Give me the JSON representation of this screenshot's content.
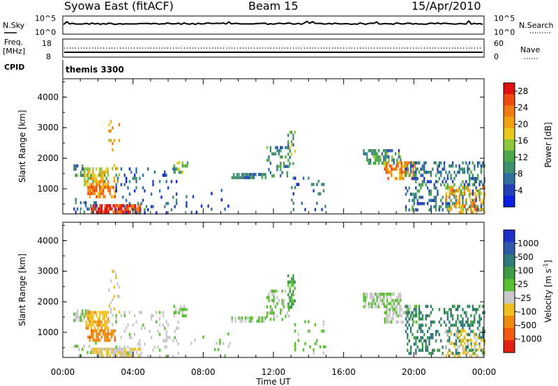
{
  "header": {
    "station": "Syowa East (fitACF)",
    "beam": "Beam 15",
    "date": "15/Apr/2010"
  },
  "status_panel": {
    "nsky_label": "N.Sky",
    "nsearch_label": "N.Search",
    "freq_label_line1": "Freq.",
    "freq_label_line2": "[MHz]",
    "nave_label": "Nave",
    "cpid_label": "CPID",
    "cpid_value": "themis 3300",
    "noise_ticks_left": [
      "10^5",
      "10^0"
    ],
    "noise_ticks_right": [
      "10^5",
      "10^0"
    ],
    "freq_ticks_left": [
      "18",
      "8"
    ],
    "nave_ticks_right": [
      "60",
      "0"
    ]
  },
  "colors": {
    "power_scale": [
      "#0b1fe0",
      "#2440b8",
      "#2f6ea0",
      "#3f8f70",
      "#4aa848",
      "#8cc83a",
      "#e8c81a",
      "#f0a010",
      "#f07a10",
      "#f04a10",
      "#e01010"
    ],
    "velocity_scale": [
      "#1f2fc8",
      "#2f5aa8",
      "#2f7a78",
      "#3f9a48",
      "#5ac030",
      "#c8c8c8",
      "#f0c020",
      "#f08a10",
      "#f05a10",
      "#e02010"
    ],
    "ground_scatter": "#c0c0c0"
  },
  "chart_data": [
    {
      "type": "heatmap",
      "name": "power-panel",
      "ylabel": "Slant Range [km]",
      "yticks": [
        "1000",
        "2000",
        "3000",
        "4000"
      ],
      "ylim": [
        180,
        4600
      ],
      "xlim": [
        0,
        24
      ],
      "colorbar": {
        "label": "Power [dB]",
        "ticks": [
          "4",
          "8",
          "12",
          "16",
          "20",
          "24",
          "28"
        ],
        "range": [
          0,
          30
        ]
      },
      "regions": [
        {
          "t0": 0.6,
          "t1": 1.4,
          "r0": 1400,
          "r1": 1800,
          "v": 9,
          "d": 0.6
        },
        {
          "t0": 1.2,
          "t1": 2.6,
          "r0": 1100,
          "r1": 1700,
          "v": 18,
          "d": 0.7
        },
        {
          "t0": 1.4,
          "t1": 3.0,
          "r0": 700,
          "r1": 1100,
          "v": 22,
          "d": 0.7
        },
        {
          "t0": 1.6,
          "t1": 4.4,
          "r0": 250,
          "r1": 500,
          "v": 27,
          "d": 0.8
        },
        {
          "t0": 0.6,
          "t1": 2.0,
          "r0": 200,
          "r1": 700,
          "v": 8,
          "d": 0.25
        },
        {
          "t0": 2.6,
          "t1": 3.2,
          "r0": 1300,
          "r1": 3250,
          "v": 20,
          "d": 0.15
        },
        {
          "t0": 3.0,
          "t1": 6.6,
          "r0": 200,
          "r1": 1700,
          "v": 6,
          "d": 0.12
        },
        {
          "t0": 6.3,
          "t1": 7.1,
          "r0": 1500,
          "r1": 1900,
          "v": 14,
          "d": 0.45
        },
        {
          "t0": 7.0,
          "t1": 9.5,
          "r0": 200,
          "r1": 1000,
          "v": 5,
          "d": 0.06
        },
        {
          "t0": 9.6,
          "t1": 11.6,
          "r0": 1380,
          "r1": 1520,
          "v": 8,
          "d": 0.7
        },
        {
          "t0": 11.6,
          "t1": 12.9,
          "r0": 1400,
          "r1": 2400,
          "v": 10,
          "d": 0.35
        },
        {
          "t0": 12.8,
          "t1": 13.2,
          "r0": 1800,
          "r1": 2900,
          "v": 12,
          "d": 0.4
        },
        {
          "t0": 13.0,
          "t1": 15.0,
          "r0": 300,
          "r1": 1400,
          "v": 6,
          "d": 0.12
        },
        {
          "t0": 17.1,
          "t1": 19.2,
          "r0": 1850,
          "r1": 2300,
          "v": 10,
          "d": 0.65
        },
        {
          "t0": 18.3,
          "t1": 20.2,
          "r0": 1300,
          "r1": 1900,
          "v": 22,
          "d": 0.55
        },
        {
          "t0": 19.5,
          "t1": 24.0,
          "r0": 300,
          "r1": 1900,
          "v": 8,
          "d": 0.35
        },
        {
          "t0": 21.8,
          "t1": 24.0,
          "r0": 250,
          "r1": 1100,
          "v": 20,
          "d": 0.35
        }
      ]
    },
    {
      "type": "heatmap",
      "name": "velocity-panel",
      "ylabel": "Slant Range [km]",
      "yticks": [
        "1000",
        "2000",
        "3000",
        "4000"
      ],
      "ylim": [
        180,
        4600
      ],
      "xlim": [
        0,
        24
      ],
      "colorbar": {
        "label": "Velocity [m s",
        "label_sup": "-1",
        "label_end": "]",
        "ticks": [
          "1000",
          "500",
          "100",
          "25",
          "-25",
          "-100",
          "-500",
          "-1000"
        ],
        "range": [
          -1200,
          1200
        ]
      },
      "regions": [
        {
          "t0": 0.6,
          "t1": 1.6,
          "r0": 1400,
          "r1": 1750,
          "v": 0,
          "d": 0.6
        },
        {
          "t0": 1.3,
          "t1": 2.6,
          "r0": 1100,
          "r1": 1700,
          "v": -400,
          "d": 0.7
        },
        {
          "t0": 1.4,
          "t1": 3.0,
          "r0": 700,
          "r1": 1100,
          "v": -600,
          "d": 0.7
        },
        {
          "t0": 1.6,
          "t1": 4.4,
          "r0": 250,
          "r1": 500,
          "v": -250,
          "d": 0.85
        },
        {
          "t0": 0.6,
          "t1": 2.0,
          "r0": 200,
          "r1": 700,
          "v": 50,
          "d": 0.2
        },
        {
          "t0": 2.6,
          "t1": 3.2,
          "r0": 1300,
          "r1": 3250,
          "v": -200,
          "d": 0.15
        },
        {
          "t0": 3.0,
          "t1": 6.6,
          "r0": 200,
          "r1": 1700,
          "v": -80,
          "d": 0.12
        },
        {
          "t0": 6.3,
          "t1": 7.1,
          "r0": 1500,
          "r1": 1900,
          "v": 0,
          "d": 0.45
        },
        {
          "t0": 7.0,
          "t1": 9.5,
          "r0": 200,
          "r1": 1000,
          "v": 60,
          "d": 0.06
        },
        {
          "t0": 9.6,
          "t1": 11.6,
          "r0": 1380,
          "r1": 1520,
          "v": 0,
          "d": 0.7
        },
        {
          "t0": 11.6,
          "t1": 12.9,
          "r0": 1400,
          "r1": 2400,
          "v": 0,
          "d": 0.35
        },
        {
          "t0": 12.8,
          "t1": 13.2,
          "r0": 1800,
          "r1": 2900,
          "v": 300,
          "d": 0.4
        },
        {
          "t0": 13.0,
          "t1": 15.0,
          "r0": 300,
          "r1": 1400,
          "v": 80,
          "d": 0.12
        },
        {
          "t0": 17.1,
          "t1": 19.2,
          "r0": 1850,
          "r1": 2300,
          "v": 0,
          "d": 0.65
        },
        {
          "t0": 18.3,
          "t1": 20.2,
          "r0": 1300,
          "r1": 1900,
          "v": 0,
          "d": 0.55
        },
        {
          "t0": 19.5,
          "t1": 24.0,
          "r0": 300,
          "r1": 1900,
          "v": 500,
          "d": 0.35
        },
        {
          "t0": 21.8,
          "t1": 24.0,
          "r0": 250,
          "r1": 1100,
          "v": -300,
          "d": 0.35
        }
      ]
    }
  ],
  "time_axis": {
    "label": "Time UT",
    "ticks": [
      "00:00",
      "04:00",
      "08:00",
      "12:00",
      "16:00",
      "20:00",
      "00:00"
    ]
  }
}
